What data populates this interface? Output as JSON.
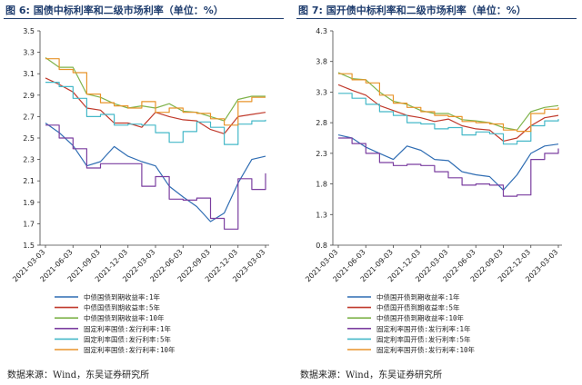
{
  "panels": [
    {
      "title": "图 6: 国债中标利率和二级市场利率（单位：%）",
      "source": "数据来源：Wind，东吴证券研究所"
    },
    {
      "title": "图 7: 国开债中标利率和二级市场利率（单位：%）",
      "source": "数据来源：Wind，东吴证券研究所"
    }
  ],
  "chart_data": [
    {
      "type": "line",
      "title": "",
      "ylim": [
        1.5,
        3.5
      ],
      "yticks": [
        "3.5",
        "3.3",
        "3.1",
        "2.9",
        "2.7",
        "2.5",
        "2.3",
        "2.1",
        "1.9",
        "1.7",
        "1.5"
      ],
      "xticks": [
        "2021-03-03",
        "2021-06-03",
        "2021-09-03",
        "2021-12-03",
        "2022-03-03",
        "2022-06-03",
        "2022-09-03",
        "2022-12-03",
        "2023-03-03"
      ],
      "grid": false,
      "legend_position": "bottom",
      "series": [
        {
          "name": "中债国债到期收益率:1年",
          "color": "#2f6db3",
          "step": false,
          "values": [
            2.64,
            2.55,
            2.43,
            2.24,
            2.28,
            2.42,
            2.33,
            2.28,
            2.24,
            2.05,
            1.95,
            1.86,
            1.72,
            1.8,
            2.08,
            2.3,
            2.33
          ]
        },
        {
          "name": "中债国债到期收益率:5年",
          "color": "#c0392b",
          "step": false,
          "values": [
            3.06,
            3.0,
            2.93,
            2.78,
            2.76,
            2.64,
            2.64,
            2.6,
            2.74,
            2.7,
            2.67,
            2.66,
            2.58,
            2.54,
            2.7,
            2.72,
            2.74
          ]
        },
        {
          "name": "中债国债到期收益率:10年",
          "color": "#7fb34b",
          "step": false,
          "values": [
            3.25,
            3.16,
            3.16,
            2.91,
            2.88,
            2.82,
            2.78,
            2.8,
            2.78,
            2.82,
            2.75,
            2.74,
            2.7,
            2.66,
            2.86,
            2.89,
            2.89
          ]
        },
        {
          "name": "固定利率国债:发行利率:1年",
          "color": "#7b3fa0",
          "step": true,
          "values": [
            2.62,
            2.5,
            2.4,
            2.22,
            2.26,
            2.26,
            2.26,
            2.05,
            2.14,
            1.93,
            1.92,
            1.94,
            1.75,
            1.65,
            2.12,
            2.02,
            2.17
          ]
        },
        {
          "name": "固定利率国债:发行利率:5年",
          "color": "#45b8c8",
          "step": true,
          "values": [
            3.02,
            2.98,
            2.87,
            2.7,
            2.72,
            2.62,
            2.63,
            2.62,
            2.55,
            2.46,
            2.56,
            2.65,
            2.6,
            2.44,
            2.63,
            2.66,
            2.67
          ]
        },
        {
          "name": "固定利率国债:发行利率:10年",
          "color": "#e8942a",
          "step": true,
          "values": [
            3.24,
            3.14,
            3.11,
            2.91,
            2.83,
            2.8,
            2.78,
            2.84,
            2.74,
            2.78,
            2.74,
            2.73,
            2.68,
            2.62,
            2.84,
            2.88,
            2.88
          ]
        }
      ]
    },
    {
      "type": "line",
      "title": "",
      "ylim": [
        0.8,
        4.3
      ],
      "yticks": [
        "4.3",
        "3.8",
        "3.3",
        "2.8",
        "2.3",
        "1.8",
        "1.3",
        "0.8"
      ],
      "xticks": [
        "2021-03-03",
        "2021-06-03",
        "2021-09-03",
        "2021-12-03",
        "2022-03-03",
        "2022-06-03",
        "2022-09-03",
        "2022-12-03",
        "2023-03-03"
      ],
      "grid": false,
      "legend_position": "bottom",
      "series": [
        {
          "name": "中债国开债到期收益率:1年",
          "color": "#2f6db3",
          "step": false,
          "values": [
            2.6,
            2.55,
            2.4,
            2.3,
            2.2,
            2.42,
            2.35,
            2.2,
            2.18,
            2.0,
            1.95,
            1.92,
            1.7,
            1.95,
            2.3,
            2.42,
            2.45
          ]
        },
        {
          "name": "中债国开债到期收益率:5年",
          "color": "#c0392b",
          "step": false,
          "values": [
            3.42,
            3.33,
            3.25,
            3.08,
            3.0,
            2.92,
            2.88,
            2.82,
            2.86,
            2.75,
            2.7,
            2.68,
            2.5,
            2.55,
            2.75,
            2.88,
            2.92
          ]
        },
        {
          "name": "中债国开债到期收益率:10年",
          "color": "#7fb34b",
          "step": false,
          "values": [
            3.62,
            3.52,
            3.5,
            3.3,
            3.15,
            3.1,
            3.0,
            2.95,
            2.95,
            2.85,
            2.83,
            2.8,
            2.72,
            2.68,
            2.98,
            3.05,
            3.08
          ]
        },
        {
          "name": "固定利率国开债:发行利率:1年",
          "color": "#7b3fa0",
          "step": true,
          "values": [
            2.55,
            2.46,
            2.3,
            2.15,
            2.1,
            2.12,
            2.1,
            2.0,
            1.9,
            1.78,
            1.8,
            1.78,
            1.6,
            1.62,
            2.2,
            2.3,
            2.38
          ]
        },
        {
          "name": "固定利率国开债:发行利率:5年",
          "color": "#45b8c8",
          "step": true,
          "values": [
            3.28,
            3.2,
            3.1,
            2.98,
            2.92,
            2.8,
            2.78,
            2.7,
            2.72,
            2.6,
            2.65,
            2.62,
            2.45,
            2.5,
            2.75,
            2.83,
            2.86
          ]
        },
        {
          "name": "固定利率国开债:发行利率:10年",
          "color": "#e8942a",
          "step": true,
          "values": [
            3.6,
            3.5,
            3.45,
            3.25,
            3.12,
            3.05,
            2.98,
            2.92,
            2.9,
            2.82,
            2.8,
            2.78,
            2.68,
            2.66,
            2.95,
            3.02,
            3.05
          ]
        }
      ]
    }
  ]
}
